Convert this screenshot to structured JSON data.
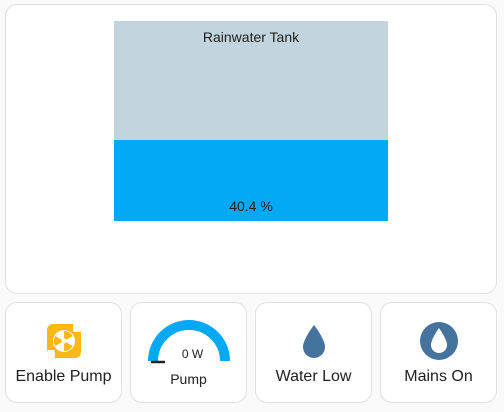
{
  "tank": {
    "title": "Rainwater Tank",
    "level_percent": 40.4,
    "value_label": "40.4 %",
    "fill_color": "#03a9f4",
    "empty_color": "#c2d4de"
  },
  "tiles": {
    "enable_pump": {
      "label": "Enable Pump",
      "icon": "pump-icon",
      "icon_color": "#fdb813"
    },
    "pump": {
      "label": "Pump",
      "value": "0 W",
      "gauge_fraction": 1.0,
      "icon": "gauge-icon",
      "gauge_color": "#03a9f4"
    },
    "water_low": {
      "label": "Water Low",
      "icon": "water-drop-icon",
      "icon_color": "#44739e"
    },
    "mains_on": {
      "label": "Mains On",
      "icon": "water-circle-icon",
      "icon_color": "#44739e"
    }
  }
}
